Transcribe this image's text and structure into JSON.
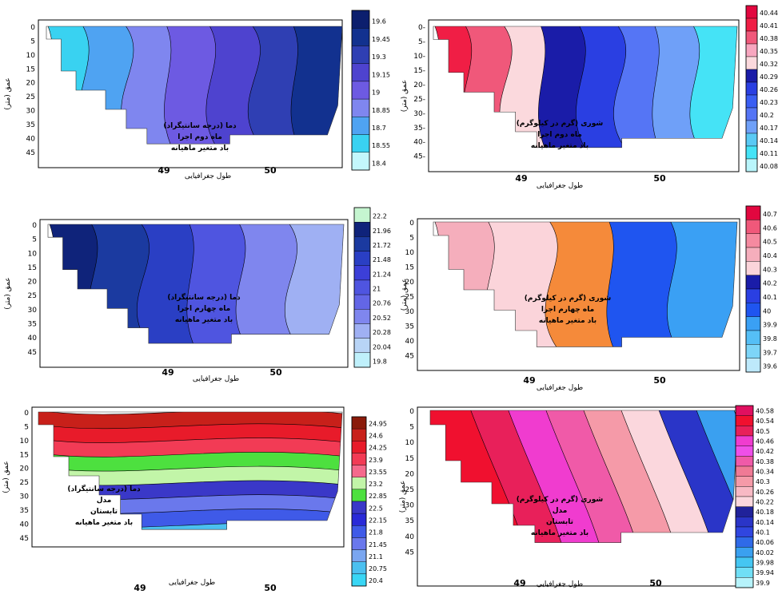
{
  "shared": {
    "xlabel": "طول جغرافیایی",
    "ylabel": "عمق (متر)",
    "x_ticks": [
      "49",
      "50"
    ],
    "y_ticks": [
      "0",
      "5",
      "10",
      "15",
      "20",
      "25",
      "30",
      "35",
      "40",
      "45"
    ]
  },
  "chart_data": [
    {
      "type": "heatmap",
      "variable": "temperature",
      "notes": [
        "دما (درجه سانتیگراد)",
        "ماه دوم اجرا",
        "باد متغیر ماهیانه"
      ],
      "xlabel": "طول جغرافیایی",
      "ylabel": "عمق (متر)",
      "x_ticks": [
        "49",
        "50"
      ],
      "y_ticks": [
        "0",
        "5",
        "10",
        "15",
        "20",
        "25",
        "30",
        "35",
        "40",
        "45"
      ],
      "ylim": [
        0,
        45
      ],
      "colorbar": {
        "levels": [
          "19.6",
          "19.45",
          "19.3",
          "19.15",
          "19",
          "18.85",
          "18.7",
          "18.55",
          "18.4"
        ],
        "colors": [
          "#0c1f6e",
          "#12318f",
          "#2f3fb3",
          "#4e43cf",
          "#6d5ae2",
          "#7f86ef",
          "#4fa3f2",
          "#39d2f1",
          "#c3f7fc"
        ]
      },
      "bands_left_to_right": [
        "#39d2f1",
        "#4fa3f2",
        "#7f86ef",
        "#6d5ae2",
        "#4e43cf",
        "#2f3fb3",
        "#12318f"
      ]
    },
    {
      "type": "heatmap",
      "variable": "salinity",
      "notes": [
        "شوری (گرم در کیلوگرم)",
        "ماه دوم اجرا",
        "باد متغیر ماهیانه"
      ],
      "xlabel": "طول جغرافیایی",
      "ylabel": "عمق (متر)",
      "x_ticks": [
        "49",
        "50"
      ],
      "y_ticks": [
        "0-",
        "5-",
        "10-",
        "15-",
        "20-",
        "25-",
        "30-",
        "35-",
        "40-",
        "45-"
      ],
      "ylim": [
        0,
        45
      ],
      "colorbar": {
        "levels": [
          "40.44",
          "40.41",
          "40.38",
          "40.35",
          "40.32",
          "40.29",
          "40.26",
          "40.23",
          "40.2",
          "40.17",
          "40.14",
          "40.11",
          "40.08"
        ],
        "colors": [
          "#e2073f",
          "#f01e45",
          "#f0587a",
          "#f8a6bf",
          "#fbd9dd",
          "#1a1ca8",
          "#2a3fe2",
          "#3a5ef3",
          "#5575f5",
          "#6fa0f8",
          "#5ac9f4",
          "#45e3f6",
          "#b9f5fb"
        ]
      },
      "bands_left_to_right": [
        "#f01e45",
        "#f0587a",
        "#fbd9dd",
        "#1a1ca8",
        "#2a3fe2",
        "#5575f5",
        "#6fa0f8",
        "#45e3f6"
      ]
    },
    {
      "type": "heatmap",
      "variable": "temperature",
      "notes": [
        "دما (درجه سانتیگراد)",
        "ماه چهارم اجرا",
        "باد متغیر ماهیانه"
      ],
      "xlabel": "طول جغرافیایی",
      "ylabel": "عمق (متر)",
      "x_ticks": [
        "49",
        "50"
      ],
      "y_ticks": [
        "0",
        "5",
        "10",
        "15",
        "20",
        "25",
        "30",
        "35",
        "40",
        "45"
      ],
      "ylim": [
        0,
        45
      ],
      "colorbar": {
        "levels": [
          "22.2",
          "21.96",
          "21.72",
          "21.48",
          "21.24",
          "21",
          "20.76",
          "20.52",
          "20.28",
          "20.04",
          "19.8"
        ],
        "colors": [
          "#c5f5d0",
          "#0f237a",
          "#1b3aa0",
          "#2a3fc4",
          "#3c3fd8",
          "#4f55e0",
          "#6366e6",
          "#7f86ee",
          "#9fb0f3",
          "#b8d4f6",
          "#bff0fb"
        ]
      },
      "bands_left_to_right": [
        "#0f237a",
        "#1b3aa0",
        "#2a3fc4",
        "#4f55e0",
        "#7f86ee",
        "#9fb0f3"
      ]
    },
    {
      "type": "heatmap",
      "variable": "salinity",
      "notes": [
        "شوری (گرم در کیلوگرم)",
        "ماه چهارم اجرا",
        "باد متغیر ماهیانه"
      ],
      "xlabel": "طول جغرافیایی",
      "ylabel": "عمق (متر)",
      "x_ticks": [
        "49",
        "50"
      ],
      "y_ticks": [
        "0",
        "5",
        "10",
        "15",
        "20",
        "25",
        "30",
        "35",
        "40",
        "45"
      ],
      "ylim": [
        0,
        45
      ],
      "colorbar": {
        "levels": [
          "40.7",
          "40.6",
          "40.5",
          "40.4",
          "40.3",
          "40.2",
          "40.1",
          "40",
          "39.9",
          "39.8",
          "39.7",
          "39.6"
        ],
        "colors": [
          "#e2073f",
          "#f0587a",
          "#f58aa0",
          "#f5aebc",
          "#fbd4da",
          "#1a1ca8",
          "#2a3fe2",
          "#1f55f0",
          "#3aa0f4",
          "#55bff6",
          "#7dd5f8",
          "#bde9fb"
        ]
      },
      "bands_left_to_right": [
        "#f5aebc",
        "#fbd4da",
        "#f58a3a",
        "#1f55f0",
        "#3aa0f4"
      ]
    },
    {
      "type": "heatmap",
      "variable": "temperature",
      "notes": [
        "دما (درجه سانتیگراد)",
        "مدل",
        "تابستان",
        "باد متغیر ماهیانه"
      ],
      "xlabel": "طول جغرافیایی",
      "ylabel": "عمق (متر)",
      "x_ticks": [
        "49",
        "50"
      ],
      "y_ticks": [
        "0",
        "5",
        "10",
        "15",
        "20",
        "25",
        "30",
        "35",
        "40",
        "45"
      ],
      "ylim": [
        0,
        45
      ],
      "colorbar": {
        "levels": [
          "24.95",
          "24.6",
          "24.25",
          "23.9",
          "23.55",
          "23.2",
          "22.85",
          "22.5",
          "22.15",
          "21.8",
          "21.45",
          "21.1",
          "20.75",
          "20.4"
        ],
        "colors": [
          "#8a1a0a",
          "#c8201a",
          "#e81b2a",
          "#f23b55",
          "#f56a8c",
          "#c2f5a8",
          "#4de03f",
          "#3a38c8",
          "#2a2ad8",
          "#3f5ae8",
          "#6a78ec",
          "#7aa6f0",
          "#4bc0f0",
          "#39d6f5"
        ]
      },
      "bands_top_to_bottom": [
        "#c8201a",
        "#e81b2a",
        "#f23b55",
        "#4de03f",
        "#c2f5a8",
        "#3a38c8",
        "#6a78ec",
        "#3f5ae8",
        "#4bc0f0"
      ]
    },
    {
      "type": "heatmap",
      "variable": "salinity",
      "notes": [
        "شوری (گرم در کیلوگرم)",
        "مدل",
        "تابستان",
        "باد متغیر ماهیانه"
      ],
      "xlabel": "طول جغرافیایی",
      "ylabel": "عمق (متر)",
      "x_ticks": [
        "49",
        "50"
      ],
      "y_ticks": [
        "0",
        "5",
        "10",
        "15",
        "20",
        "25",
        "30",
        "35",
        "40",
        "45"
      ],
      "ylim": [
        0,
        45
      ],
      "colorbar": {
        "levels": [
          "40.58",
          "40.54",
          "40.5",
          "40.46",
          "40.42",
          "40.38",
          "40.34",
          "40.3",
          "40.26",
          "40.22",
          "40.18",
          "40.14",
          "40.1",
          "40.06",
          "40.02",
          "39.98",
          "39.94",
          "39.9"
        ],
        "colors": [
          "#e01060",
          "#f0102f",
          "#e8205a",
          "#f03ccf",
          "#ef4fe8",
          "#f05aa8",
          "#f07a95",
          "#f59aa8",
          "#f8b9c4",
          "#fbd7dd",
          "#20229a",
          "#2a35c8",
          "#3046e0",
          "#2f6ae8",
          "#3aa0f0",
          "#45c6f2",
          "#70dff6",
          "#b6f3fb"
        ]
      },
      "bands_diagonal": [
        "#f0102f",
        "#e8205a",
        "#f03ccf",
        "#f05aa8",
        "#f59aa8",
        "#fbd7dd",
        "#2a35c8",
        "#3aa0f0",
        "#b6f3fb"
      ]
    }
  ]
}
